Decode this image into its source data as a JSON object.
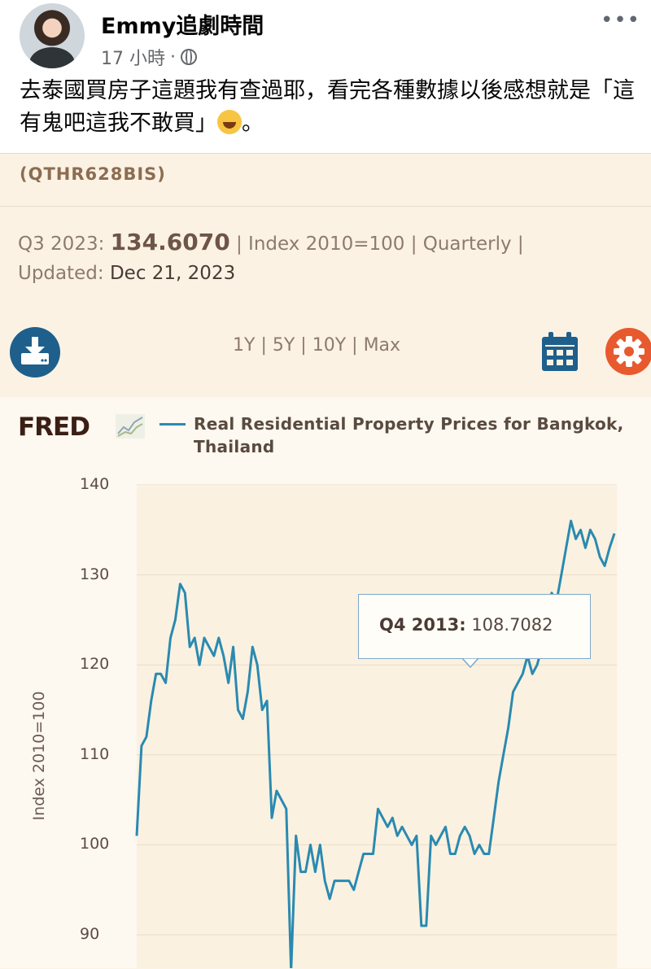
{
  "post": {
    "author": "Emmy追劇時間",
    "time": "17 小時",
    "separator": "·",
    "text": "去泰國買房子這題我有查過耶，看完各種數據以後感想就是「這有鬼吧這我不敢買」",
    "text_end": "。",
    "emoji_icon": "face-with-tears-of-joy-icon",
    "privacy_icon": "globe-icon",
    "more_label": "•••"
  },
  "fred": {
    "series_id": "(QTHR628BIS)",
    "latest_period": "Q3 2023:",
    "latest_value": "134.6070",
    "units": "| Index 2010=100 | Quarterly |",
    "updated_label": "Updated:",
    "updated_value": "Dec 21, 2023",
    "ranges": [
      "1Y",
      "|",
      "5Y",
      "|",
      "10Y",
      "|",
      "Max"
    ],
    "logo": "FRED",
    "accent": "#2a8ab0"
  },
  "chart_data": {
    "type": "line",
    "title": "Real Residential Property Prices for Bangkok, Thailand",
    "ylabel": "Index 2010=100",
    "yticks": [
      "140",
      "130",
      "120",
      "110",
      "100",
      "90"
    ],
    "ylim": [
      86,
      141
    ],
    "series": [
      {
        "name": "Real Residential Property Prices for Bangkok, Thailand",
        "values": [
          101,
          111,
          112,
          116,
          119,
          119,
          118,
          123,
          125,
          129,
          128,
          122,
          123,
          120,
          123,
          122,
          121,
          123,
          121,
          118,
          122,
          115,
          114,
          117,
          122,
          120,
          115,
          116,
          103,
          106,
          105,
          104,
          86,
          101,
          97,
          97,
          100,
          97,
          100,
          96,
          94,
          96,
          96,
          96,
          96,
          95,
          97,
          99,
          99,
          99,
          104,
          103,
          102,
          103,
          101,
          102,
          101,
          100,
          101,
          91,
          91,
          101,
          100,
          101,
          102,
          99,
          99,
          101,
          102,
          101,
          99,
          100,
          99,
          99,
          103,
          107,
          110,
          113,
          117,
          118,
          119,
          121,
          119,
          120,
          122,
          124,
          128,
          127,
          130,
          133,
          136,
          134,
          135,
          133,
          135,
          134,
          132,
          131,
          133,
          134.6
        ]
      }
    ],
    "tooltip": {
      "label": "Q4 2013:",
      "value": "108.7082"
    }
  }
}
